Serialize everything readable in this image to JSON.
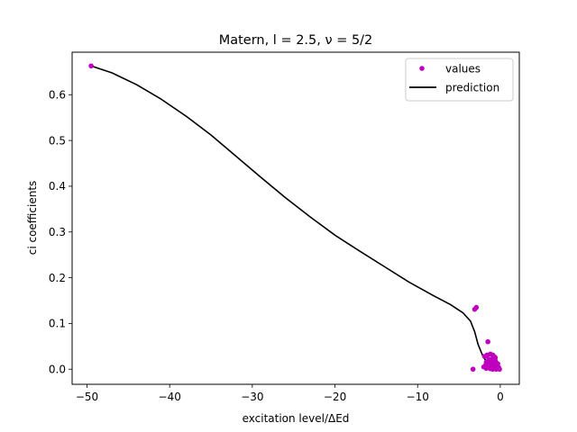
{
  "chart_data": {
    "type": "scatter",
    "title": "Matern, l = 2.5, ν = 5/2",
    "xlabel": "excitation level/ΔEd",
    "ylabel": "ci coefficients",
    "xlim": [
      -51.8,
      2.3
    ],
    "ylim": [
      -0.033,
      0.693
    ],
    "xticks": [
      -50,
      -40,
      -30,
      -20,
      -10,
      0
    ],
    "xtick_labels": [
      "−50",
      "−40",
      "−30",
      "−20",
      "−10",
      "0"
    ],
    "yticks": [
      0.0,
      0.1,
      0.2,
      0.3,
      0.4,
      0.5,
      0.6
    ],
    "ytick_labels": [
      "0.0",
      "0.1",
      "0.2",
      "0.3",
      "0.4",
      "0.5",
      "0.6"
    ],
    "grid": false,
    "legend": {
      "position": "top-right"
    },
    "series": [
      {
        "name": "values",
        "kind": "scatter",
        "color": "#bf00bf",
        "points": [
          [
            -49.5,
            0.663
          ],
          [
            -3.1,
            0.131
          ],
          [
            -2.9,
            0.135
          ],
          [
            -3.3,
            0.0
          ],
          [
            -1.5,
            0.06
          ],
          [
            -1.2,
            0.033
          ],
          [
            -1.6,
            0.031
          ],
          [
            -0.9,
            0.031
          ],
          [
            -0.6,
            0.025
          ],
          [
            -1.9,
            0.028
          ],
          [
            -1.4,
            0.022
          ],
          [
            -0.8,
            0.02
          ],
          [
            -1.7,
            0.015
          ],
          [
            -1.1,
            0.016
          ],
          [
            -0.5,
            0.014
          ],
          [
            -0.3,
            0.012
          ],
          [
            -1.3,
            0.01
          ],
          [
            -0.7,
            0.01
          ],
          [
            -1.8,
            0.008
          ],
          [
            -2.0,
            0.005
          ],
          [
            -0.4,
            0.006
          ],
          [
            -1.0,
            0.005
          ],
          [
            -1.5,
            0.004
          ],
          [
            -0.6,
            0.003
          ],
          [
            -0.2,
            0.002
          ],
          [
            -1.2,
            0.001
          ],
          [
            -0.9,
            0.0
          ],
          [
            -0.5,
            0.0
          ],
          [
            -0.3,
            0.001
          ],
          [
            -0.1,
            0.0
          ],
          [
            -1.7,
            0.002
          ],
          [
            -0.8,
            0.007
          ],
          [
            -0.4,
            0.009
          ],
          [
            -1.4,
            0.012
          ],
          [
            -0.6,
            0.018
          ],
          [
            -1.0,
            0.022
          ],
          [
            -0.7,
            0.027
          ],
          [
            -1.1,
            0.008
          ],
          [
            -0.2,
            0.004
          ],
          [
            -0.9,
            0.013
          ]
        ]
      },
      {
        "name": "prediction",
        "kind": "line",
        "color": "#000000",
        "points": [
          [
            -49.5,
            0.663
          ],
          [
            -47,
            0.648
          ],
          [
            -44,
            0.622
          ],
          [
            -41,
            0.59
          ],
          [
            -38,
            0.553
          ],
          [
            -35,
            0.512
          ],
          [
            -32,
            0.466
          ],
          [
            -29,
            0.42
          ],
          [
            -26,
            0.375
          ],
          [
            -23,
            0.333
          ],
          [
            -20,
            0.293
          ],
          [
            -17,
            0.258
          ],
          [
            -14,
            0.224
          ],
          [
            -11,
            0.19
          ],
          [
            -8,
            0.16
          ],
          [
            -6,
            0.141
          ],
          [
            -4.5,
            0.123
          ],
          [
            -3.6,
            0.105
          ],
          [
            -3.1,
            0.082
          ],
          [
            -2.7,
            0.055
          ],
          [
            -2.3,
            0.037
          ],
          [
            -2.0,
            0.025
          ],
          [
            -1.7,
            0.018
          ],
          [
            -1.4,
            0.013
          ],
          [
            -1.1,
            0.009
          ],
          [
            -0.8,
            0.006
          ],
          [
            -0.5,
            0.003
          ],
          [
            -0.3,
            0.002
          ],
          [
            -0.1,
            0.002
          ]
        ]
      }
    ]
  }
}
